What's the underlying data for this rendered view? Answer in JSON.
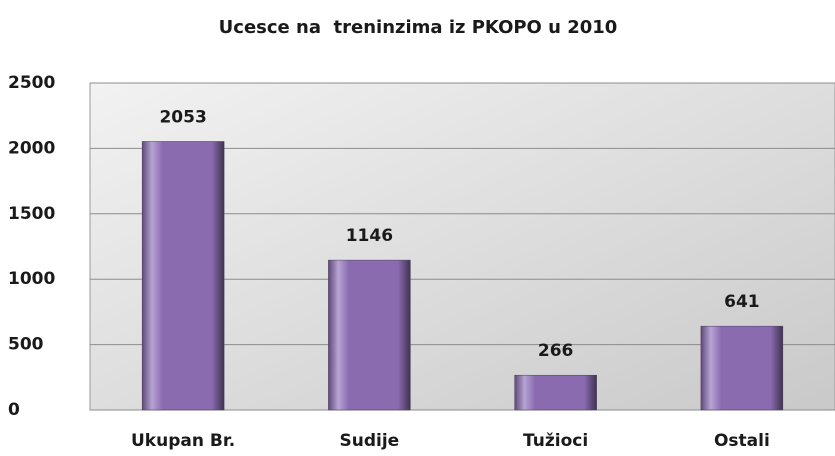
{
  "chart_data": {
    "type": "bar",
    "title": "Ucesce na  treninzima iz PKOPO u 2010",
    "categories": [
      "Ukupan Br.",
      "Sudije",
      "Tužioci",
      "Ostali"
    ],
    "values": [
      2053,
      1146,
      266,
      641
    ],
    "color": "#8a6bb0",
    "ylim": [
      0,
      2500
    ],
    "yticks": [
      0,
      500,
      1000,
      1500,
      2000,
      2500
    ],
    "grid": true
  }
}
